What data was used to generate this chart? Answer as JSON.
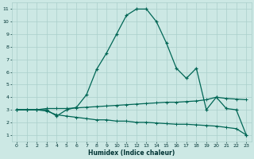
{
  "xlabel": "Humidex (Indice chaleur)",
  "bg_color": "#cce8e4",
  "grid_color": "#aacfcb",
  "line_color": "#006655",
  "xlim": [
    -0.5,
    23.5
  ],
  "ylim": [
    0.5,
    11.5
  ],
  "xticks": [
    0,
    1,
    2,
    3,
    4,
    5,
    6,
    7,
    8,
    9,
    10,
    11,
    12,
    13,
    14,
    15,
    16,
    17,
    18,
    19,
    20,
    21,
    22,
    23
  ],
  "yticks": [
    1,
    2,
    3,
    4,
    5,
    6,
    7,
    8,
    9,
    10,
    11
  ],
  "curve1_x": [
    0,
    1,
    2,
    3,
    4,
    5,
    6,
    7,
    8,
    9,
    10,
    11,
    12,
    13,
    14,
    15,
    16,
    17,
    18,
    19,
    20,
    21,
    22,
    23
  ],
  "curve1_y": [
    3,
    3,
    3,
    3,
    2.5,
    3.0,
    3.2,
    4.2,
    6.2,
    7.5,
    9.0,
    10.5,
    11.0,
    11.0,
    10.0,
    8.3,
    6.3,
    5.5,
    6.3,
    3.0,
    4.0,
    3.1,
    3.0,
    1.0
  ],
  "curve2_x": [
    0,
    1,
    2,
    3,
    4,
    5,
    6,
    7,
    8,
    9,
    10,
    11,
    12,
    13,
    14,
    15,
    16,
    17,
    18,
    19,
    20,
    21,
    22,
    23
  ],
  "curve2_y": [
    3.0,
    3.0,
    3.0,
    3.1,
    3.1,
    3.1,
    3.15,
    3.2,
    3.25,
    3.3,
    3.35,
    3.4,
    3.45,
    3.5,
    3.55,
    3.6,
    3.6,
    3.65,
    3.7,
    3.8,
    4.0,
    3.9,
    3.85,
    3.8
  ],
  "curve3_x": [
    0,
    1,
    2,
    3,
    4,
    5,
    6,
    7,
    8,
    9,
    10,
    11,
    12,
    13,
    14,
    15,
    16,
    17,
    18,
    19,
    20,
    21,
    22,
    23
  ],
  "curve3_y": [
    3.0,
    3.0,
    3.0,
    2.9,
    2.6,
    2.5,
    2.4,
    2.3,
    2.2,
    2.2,
    2.1,
    2.1,
    2.0,
    2.0,
    1.95,
    1.9,
    1.85,
    1.85,
    1.8,
    1.75,
    1.7,
    1.6,
    1.5,
    1.0
  ]
}
